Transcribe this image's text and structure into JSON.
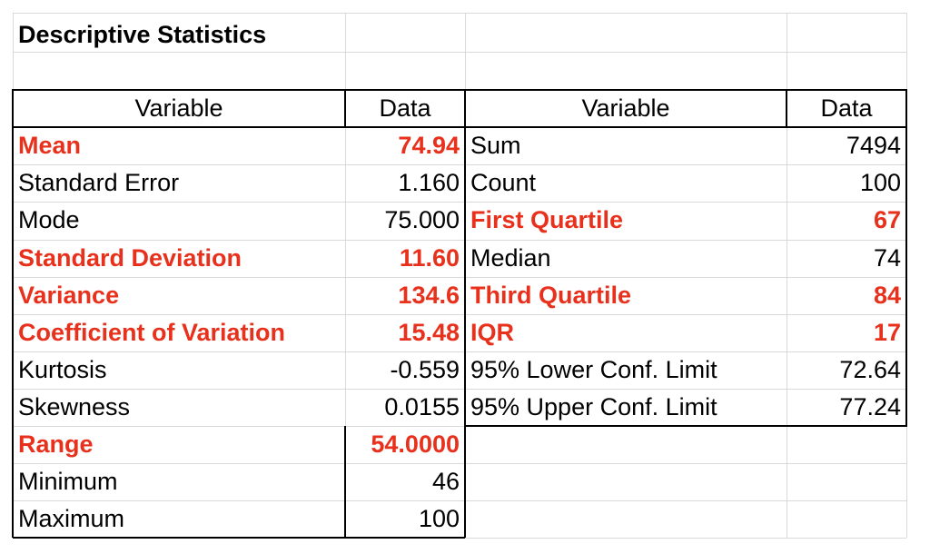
{
  "sheet": {
    "title": "Descriptive Statistics",
    "left_header": {
      "variable": "Variable",
      "data": "Data"
    },
    "right_header": {
      "variable": "Variable",
      "data": "Data"
    },
    "left_rows": [
      {
        "label": "Mean",
        "value": "74.94",
        "highlight": true
      },
      {
        "label": "Standard Error",
        "value": "1.160",
        "highlight": false
      },
      {
        "label": "Mode",
        "value": "75.000",
        "highlight": false
      },
      {
        "label": "Standard Deviation",
        "value": "11.60",
        "highlight": true
      },
      {
        "label": "Variance",
        "value": "134.6",
        "highlight": true
      },
      {
        "label": "Coefficient of Variation",
        "value": "15.48",
        "highlight": true
      },
      {
        "label": "Kurtosis",
        "value": "-0.559",
        "highlight": false
      },
      {
        "label": "Skewness",
        "value": "0.0155",
        "highlight": false
      },
      {
        "label": "Range",
        "value": "54.0000",
        "highlight": true
      },
      {
        "label": "Minimum",
        "value": "46",
        "highlight": false
      },
      {
        "label": "Maximum",
        "value": "100",
        "highlight": false
      }
    ],
    "right_rows": [
      {
        "label": "Sum",
        "value": "7494",
        "highlight": false
      },
      {
        "label": "Count",
        "value": "100",
        "highlight": false
      },
      {
        "label": "First Quartile",
        "value": "67",
        "highlight": true
      },
      {
        "label": "Median",
        "value": "74",
        "highlight": false
      },
      {
        "label": "Third Quartile",
        "value": "84",
        "highlight": true
      },
      {
        "label": "IQR",
        "value": "17",
        "highlight": true
      },
      {
        "label": "95% Lower Conf. Limit",
        "value": "72.64",
        "highlight": false
      },
      {
        "label": "95% Upper Conf. Limit",
        "value": "77.24",
        "highlight": false
      }
    ],
    "highlight_color": "#e8311c"
  }
}
